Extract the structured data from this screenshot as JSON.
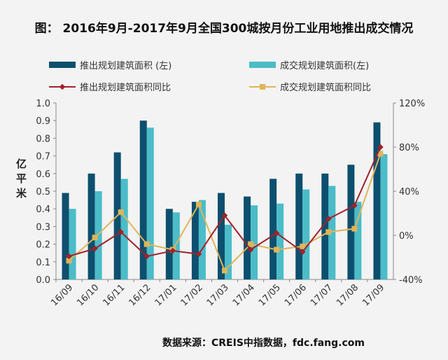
{
  "chart_data": {
    "type": "bar",
    "title": "图： 2016年9月-2017年9月全国300城按月份工业用地推出成交情况",
    "ylabel": "亿平米",
    "ylabel_right": "",
    "categories": [
      "16/09",
      "16/10",
      "16/11",
      "16/12",
      "17/01",
      "17/02",
      "17/03",
      "17/04",
      "17/05",
      "17/06",
      "17/07",
      "17/08",
      "17/09"
    ],
    "ylim": [
      0,
      1.0
    ],
    "yticks": [
      "0.0",
      "0.1",
      "0.2",
      "0.3",
      "0.4",
      "0.5",
      "0.6",
      "0.7",
      "0.8",
      "0.9",
      "1.0"
    ],
    "y2lim": [
      -40,
      120
    ],
    "y2ticks": [
      "-40%",
      "0%",
      "40%",
      "80%",
      "120%"
    ],
    "grid": false,
    "legend_placement": "top",
    "series": [
      {
        "name": "推出规划建筑面积 (左)",
        "kind": "bar",
        "axis": "left",
        "color": "#0d4f6e",
        "values": [
          0.49,
          0.6,
          0.72,
          0.9,
          0.4,
          0.44,
          0.49,
          0.47,
          0.57,
          0.6,
          0.6,
          0.65,
          0.89
        ]
      },
      {
        "name": "成交规划建筑面积(左)",
        "kind": "bar",
        "axis": "left",
        "color": "#4bbcc8",
        "values": [
          0.4,
          0.5,
          0.57,
          0.86,
          0.38,
          0.45,
          0.31,
          0.42,
          0.43,
          0.51,
          0.53,
          0.44,
          0.71
        ]
      },
      {
        "name": "推出规划建筑面积同比",
        "kind": "line",
        "axis": "right",
        "color": "#a0222a",
        "marker": "diamond",
        "values": [
          -19,
          -12,
          3,
          -19,
          -14,
          -17,
          18,
          -13,
          2,
          -15,
          15,
          27,
          80
        ]
      },
      {
        "name": "成交规划建筑面积同比",
        "kind": "line",
        "axis": "right",
        "color": "#e0b45a",
        "marker": "square",
        "values": [
          -23,
          -2,
          21,
          -8,
          -13,
          28,
          -32,
          -8,
          -13,
          -10,
          3,
          6,
          74
        ]
      }
    ]
  },
  "source": "数据来源：CREIS中指数据，fdc.fang.com"
}
